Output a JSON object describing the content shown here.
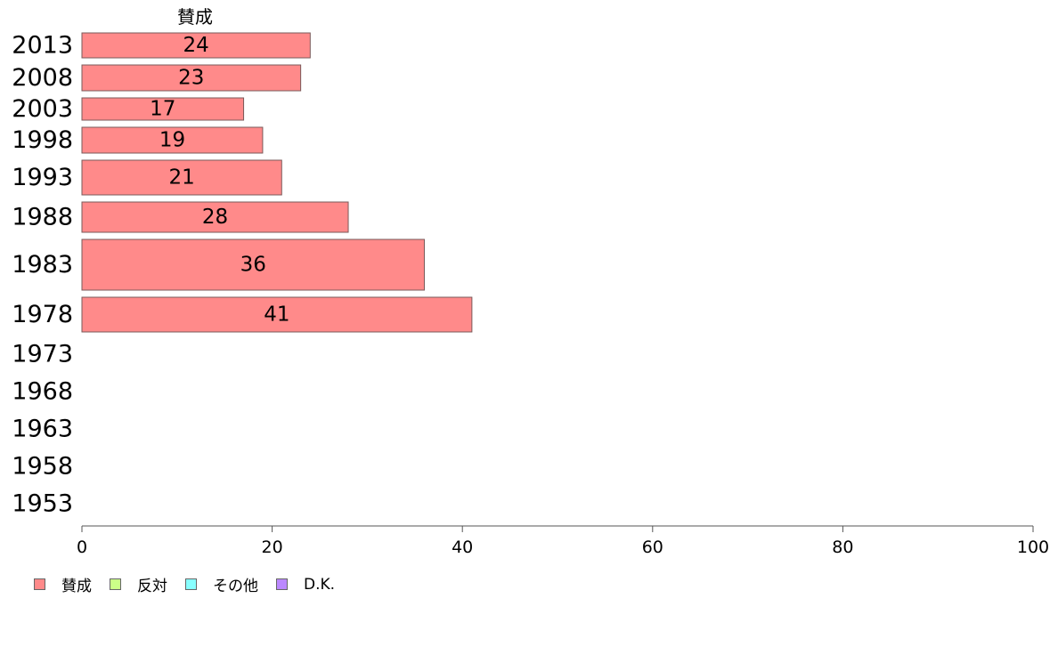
{
  "chart_data": {
    "type": "bar",
    "orientation": "horizontal",
    "stacked": true,
    "categories": [
      "2013",
      "2008",
      "2003",
      "1998",
      "1993",
      "1988",
      "1983",
      "1978",
      "1973",
      "1968",
      "1963",
      "1958",
      "1953"
    ],
    "series": [
      {
        "name": "賛成",
        "color": "#ff8a8a",
        "values": [
          24,
          23,
          17,
          19,
          21,
          28,
          36,
          41,
          null,
          null,
          null,
          null,
          null
        ]
      },
      {
        "name": "反対",
        "color": "#ccff88",
        "values": [
          null,
          null,
          null,
          null,
          null,
          null,
          null,
          null,
          null,
          null,
          null,
          null,
          null
        ]
      },
      {
        "name": "その他",
        "color": "#88ffff",
        "values": [
          null,
          null,
          null,
          null,
          null,
          null,
          null,
          null,
          null,
          null,
          null,
          null,
          null
        ]
      },
      {
        "name": "D.K.",
        "color": "#bb88ff",
        "values": [
          null,
          null,
          null,
          null,
          null,
          null,
          null,
          null,
          null,
          null,
          null,
          null,
          null
        ]
      }
    ],
    "series_label": "賛成",
    "xlim": [
      0,
      100
    ],
    "xticks": [
      0,
      20,
      40,
      60,
      80,
      100
    ],
    "grid": false,
    "legend_position": "bottom-left"
  }
}
